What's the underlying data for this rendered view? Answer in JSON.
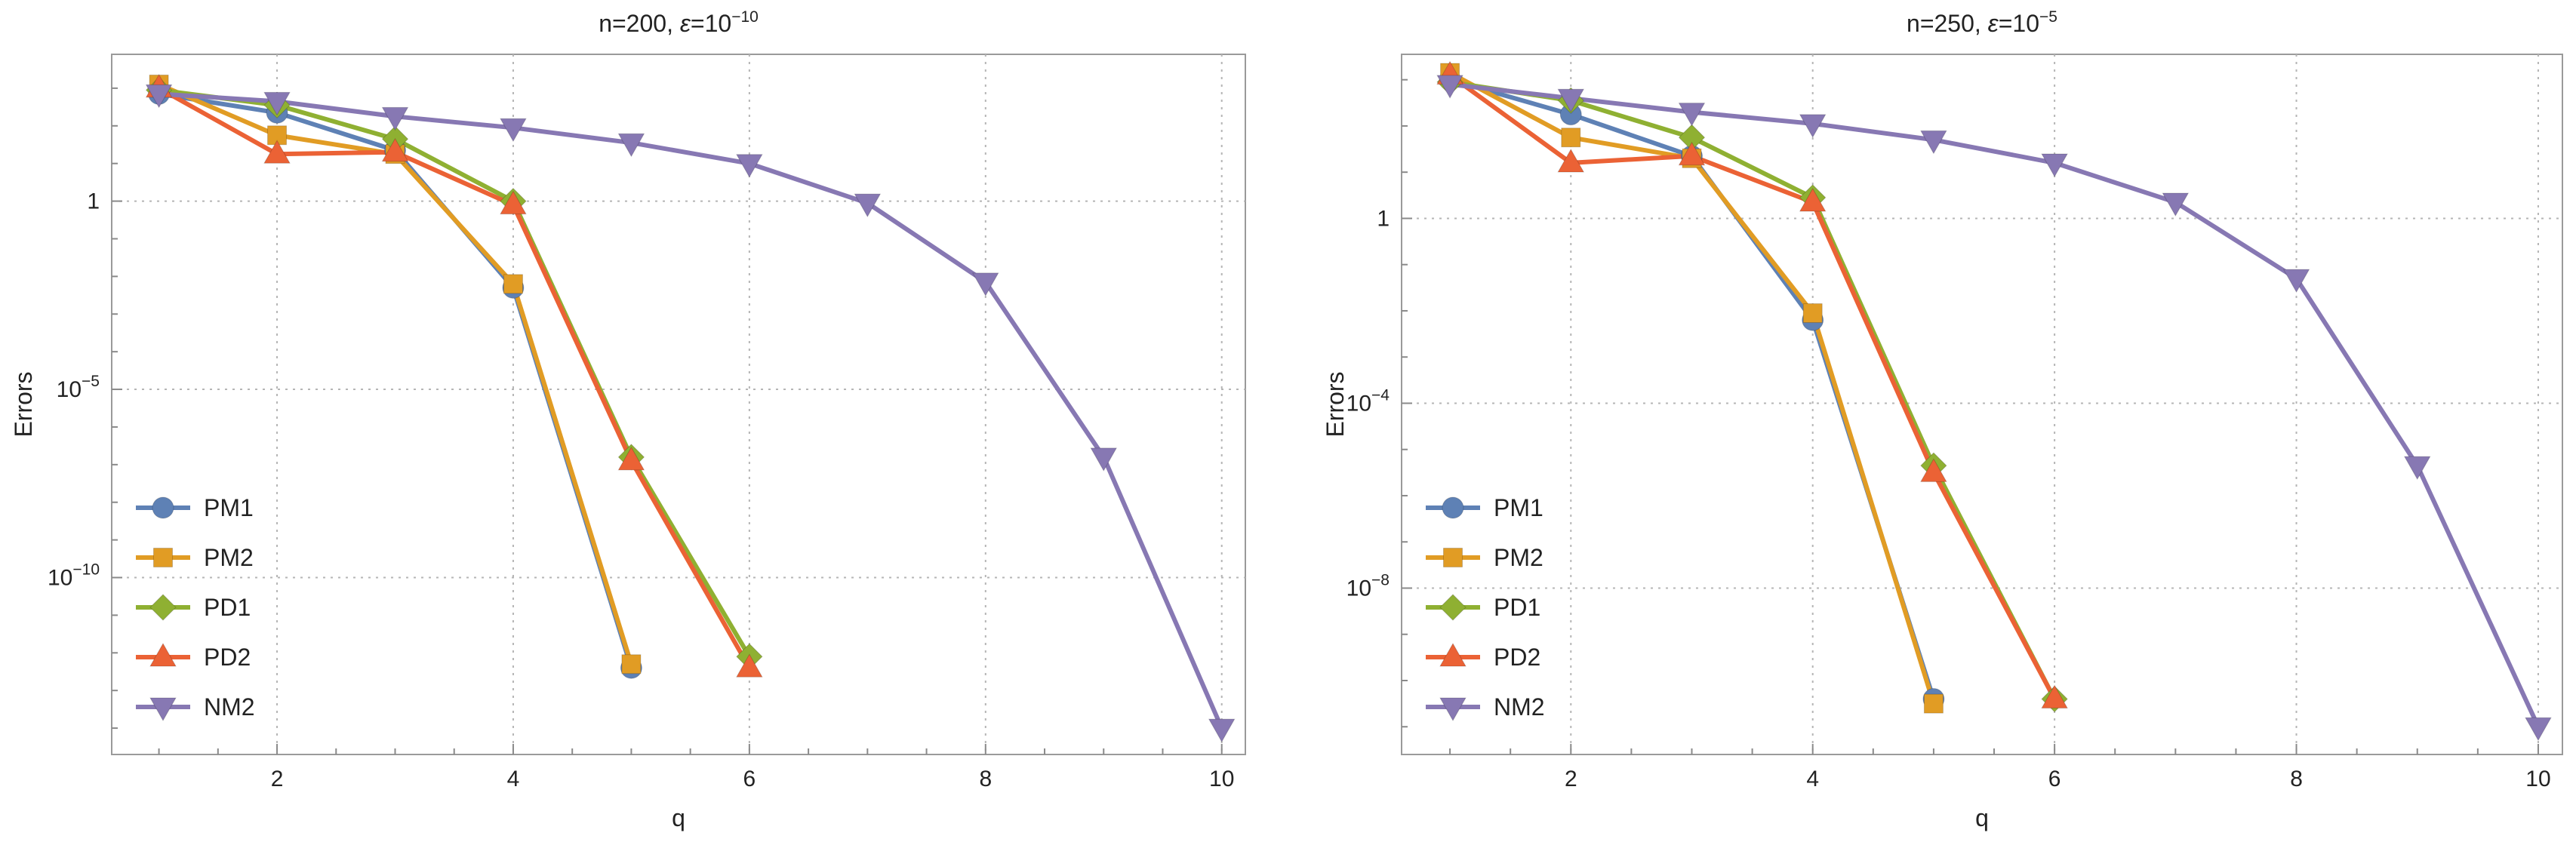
{
  "chart_data": [
    {
      "type": "line",
      "title": "n=200, ε=10",
      "title_parts": {
        "prefix": "n=200, ",
        "eps_symbol": "ε",
        "eq_base": "=10",
        "exponent": "−10"
      },
      "xlabel": "q",
      "ylabel": "Errors",
      "xlim": [
        0.6,
        10.2
      ],
      "x_ticks": [
        2,
        4,
        6,
        8,
        10
      ],
      "x_tick_labels": [
        "2",
        "4",
        "6",
        "8",
        "10"
      ],
      "y_scale": "log10",
      "ylim_log10": [
        -14.7,
        3.9
      ],
      "y_ticks_log10": [
        0,
        -5,
        -10
      ],
      "y_tick_labels": [
        {
          "base": "1",
          "exp": ""
        },
        {
          "base": "10",
          "exp": "-5"
        },
        {
          "base": "10",
          "exp": "-10"
        }
      ],
      "grid": true,
      "legend_position": "bottom-left",
      "series": [
        {
          "name": "PM1",
          "color": "#5e81b5",
          "marker": "circle",
          "x": [
            1,
            2,
            3,
            4,
            5
          ],
          "log10_y": [
            2.85,
            2.35,
            1.35,
            -2.3,
            -12.4
          ]
        },
        {
          "name": "PM2",
          "color": "#e19c24",
          "marker": "square",
          "x": [
            1,
            2,
            3,
            4,
            5
          ],
          "log10_y": [
            3.1,
            1.75,
            1.25,
            -2.2,
            -12.3
          ]
        },
        {
          "name": "PD1",
          "color": "#8fb032",
          "marker": "diamond",
          "x": [
            1,
            2,
            3,
            4,
            5,
            6
          ],
          "log10_y": [
            2.95,
            2.55,
            1.65,
            0.0,
            -6.8,
            -12.1
          ]
        },
        {
          "name": "PD2",
          "color": "#eb6235",
          "marker": "triangle-up",
          "x": [
            1,
            2,
            3,
            4,
            5,
            6
          ],
          "log10_y": [
            3.0,
            1.25,
            1.3,
            -0.1,
            -6.9,
            -12.4
          ]
        },
        {
          "name": "NM2",
          "color": "#8778b3",
          "marker": "triangle-down",
          "x": [
            1,
            2,
            3,
            4,
            5,
            6,
            7,
            8,
            9,
            10
          ],
          "log10_y": [
            2.85,
            2.65,
            2.25,
            1.95,
            1.55,
            1.0,
            -0.05,
            -2.15,
            -6.8,
            -14.0
          ]
        }
      ]
    },
    {
      "type": "line",
      "title": "n=250, ε=10",
      "title_parts": {
        "prefix": "n=250, ",
        "eps_symbol": "ε",
        "eq_base": "=10",
        "exponent": "−5"
      },
      "xlabel": "q",
      "ylabel": "Errors",
      "xlim": [
        0.6,
        10.2
      ],
      "x_ticks": [
        2,
        4,
        6,
        8,
        10
      ],
      "x_tick_labels": [
        "2",
        "4",
        "6",
        "8",
        "10"
      ],
      "y_scale": "log10",
      "ylim_log10": [
        -11.6,
        3.55
      ],
      "y_ticks_log10": [
        0,
        -4,
        -8
      ],
      "y_tick_labels": [
        {
          "base": "1",
          "exp": ""
        },
        {
          "base": "10",
          "exp": "-4"
        },
        {
          "base": "10",
          "exp": "-8"
        }
      ],
      "grid": true,
      "legend_position": "bottom-left",
      "series": [
        {
          "name": "PM1",
          "color": "#5e81b5",
          "marker": "circle",
          "x": [
            1,
            2,
            3,
            4,
            5
          ],
          "log10_y": [
            3.0,
            2.25,
            1.35,
            -2.2,
            -10.4
          ]
        },
        {
          "name": "PM2",
          "color": "#e19c24",
          "marker": "square",
          "x": [
            1,
            2,
            3,
            4,
            5
          ],
          "log10_y": [
            3.15,
            1.75,
            1.3,
            -2.05,
            -10.5
          ]
        },
        {
          "name": "PD1",
          "color": "#8fb032",
          "marker": "diamond",
          "x": [
            1,
            2,
            3,
            4,
            5,
            6
          ],
          "log10_y": [
            2.95,
            2.55,
            1.75,
            0.45,
            -5.35,
            -10.4
          ]
        },
        {
          "name": "PD2",
          "color": "#eb6235",
          "marker": "triangle-up",
          "x": [
            1,
            2,
            3,
            4,
            5,
            6
          ],
          "log10_y": [
            3.1,
            1.2,
            1.35,
            0.35,
            -5.5,
            -10.4
          ]
        },
        {
          "name": "NM2",
          "color": "#8778b3",
          "marker": "triangle-down",
          "x": [
            1,
            2,
            3,
            4,
            5,
            6,
            7,
            8,
            9,
            10
          ],
          "log10_y": [
            2.9,
            2.6,
            2.3,
            2.05,
            1.7,
            1.2,
            0.35,
            -1.3,
            -5.35,
            -11.0
          ]
        }
      ]
    }
  ]
}
